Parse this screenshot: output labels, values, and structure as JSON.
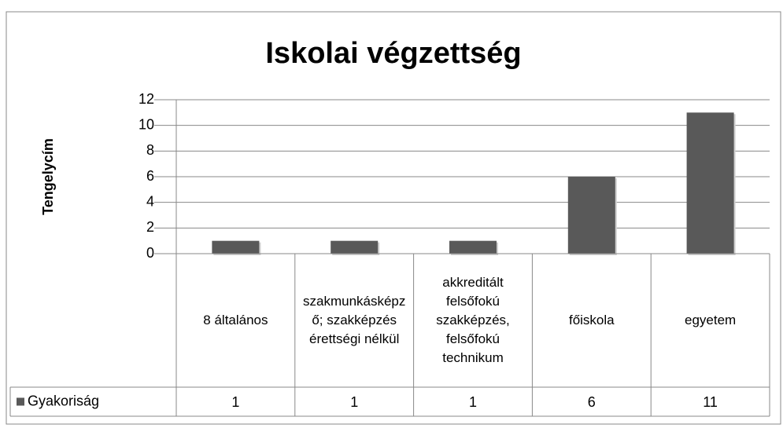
{
  "chart_data": {
    "type": "bar",
    "title": "Iskolai végzettség",
    "y_label": "Tengelycím",
    "categories": [
      "8 általános",
      "szakmunkásképző; szakképzés érettségi nélkül",
      "akkreditált felsőfokú szakképzés, felsőfokú technikum",
      "főiskola",
      "egyetem"
    ],
    "series": [
      {
        "name": "Gyakoriság",
        "color": "#595959",
        "values": [
          1,
          1,
          1,
          6,
          11
        ]
      }
    ],
    "ylim": [
      0,
      12
    ],
    "yticks": [
      0,
      2,
      4,
      6,
      8,
      10,
      12
    ],
    "grid": true,
    "data_table": true
  }
}
